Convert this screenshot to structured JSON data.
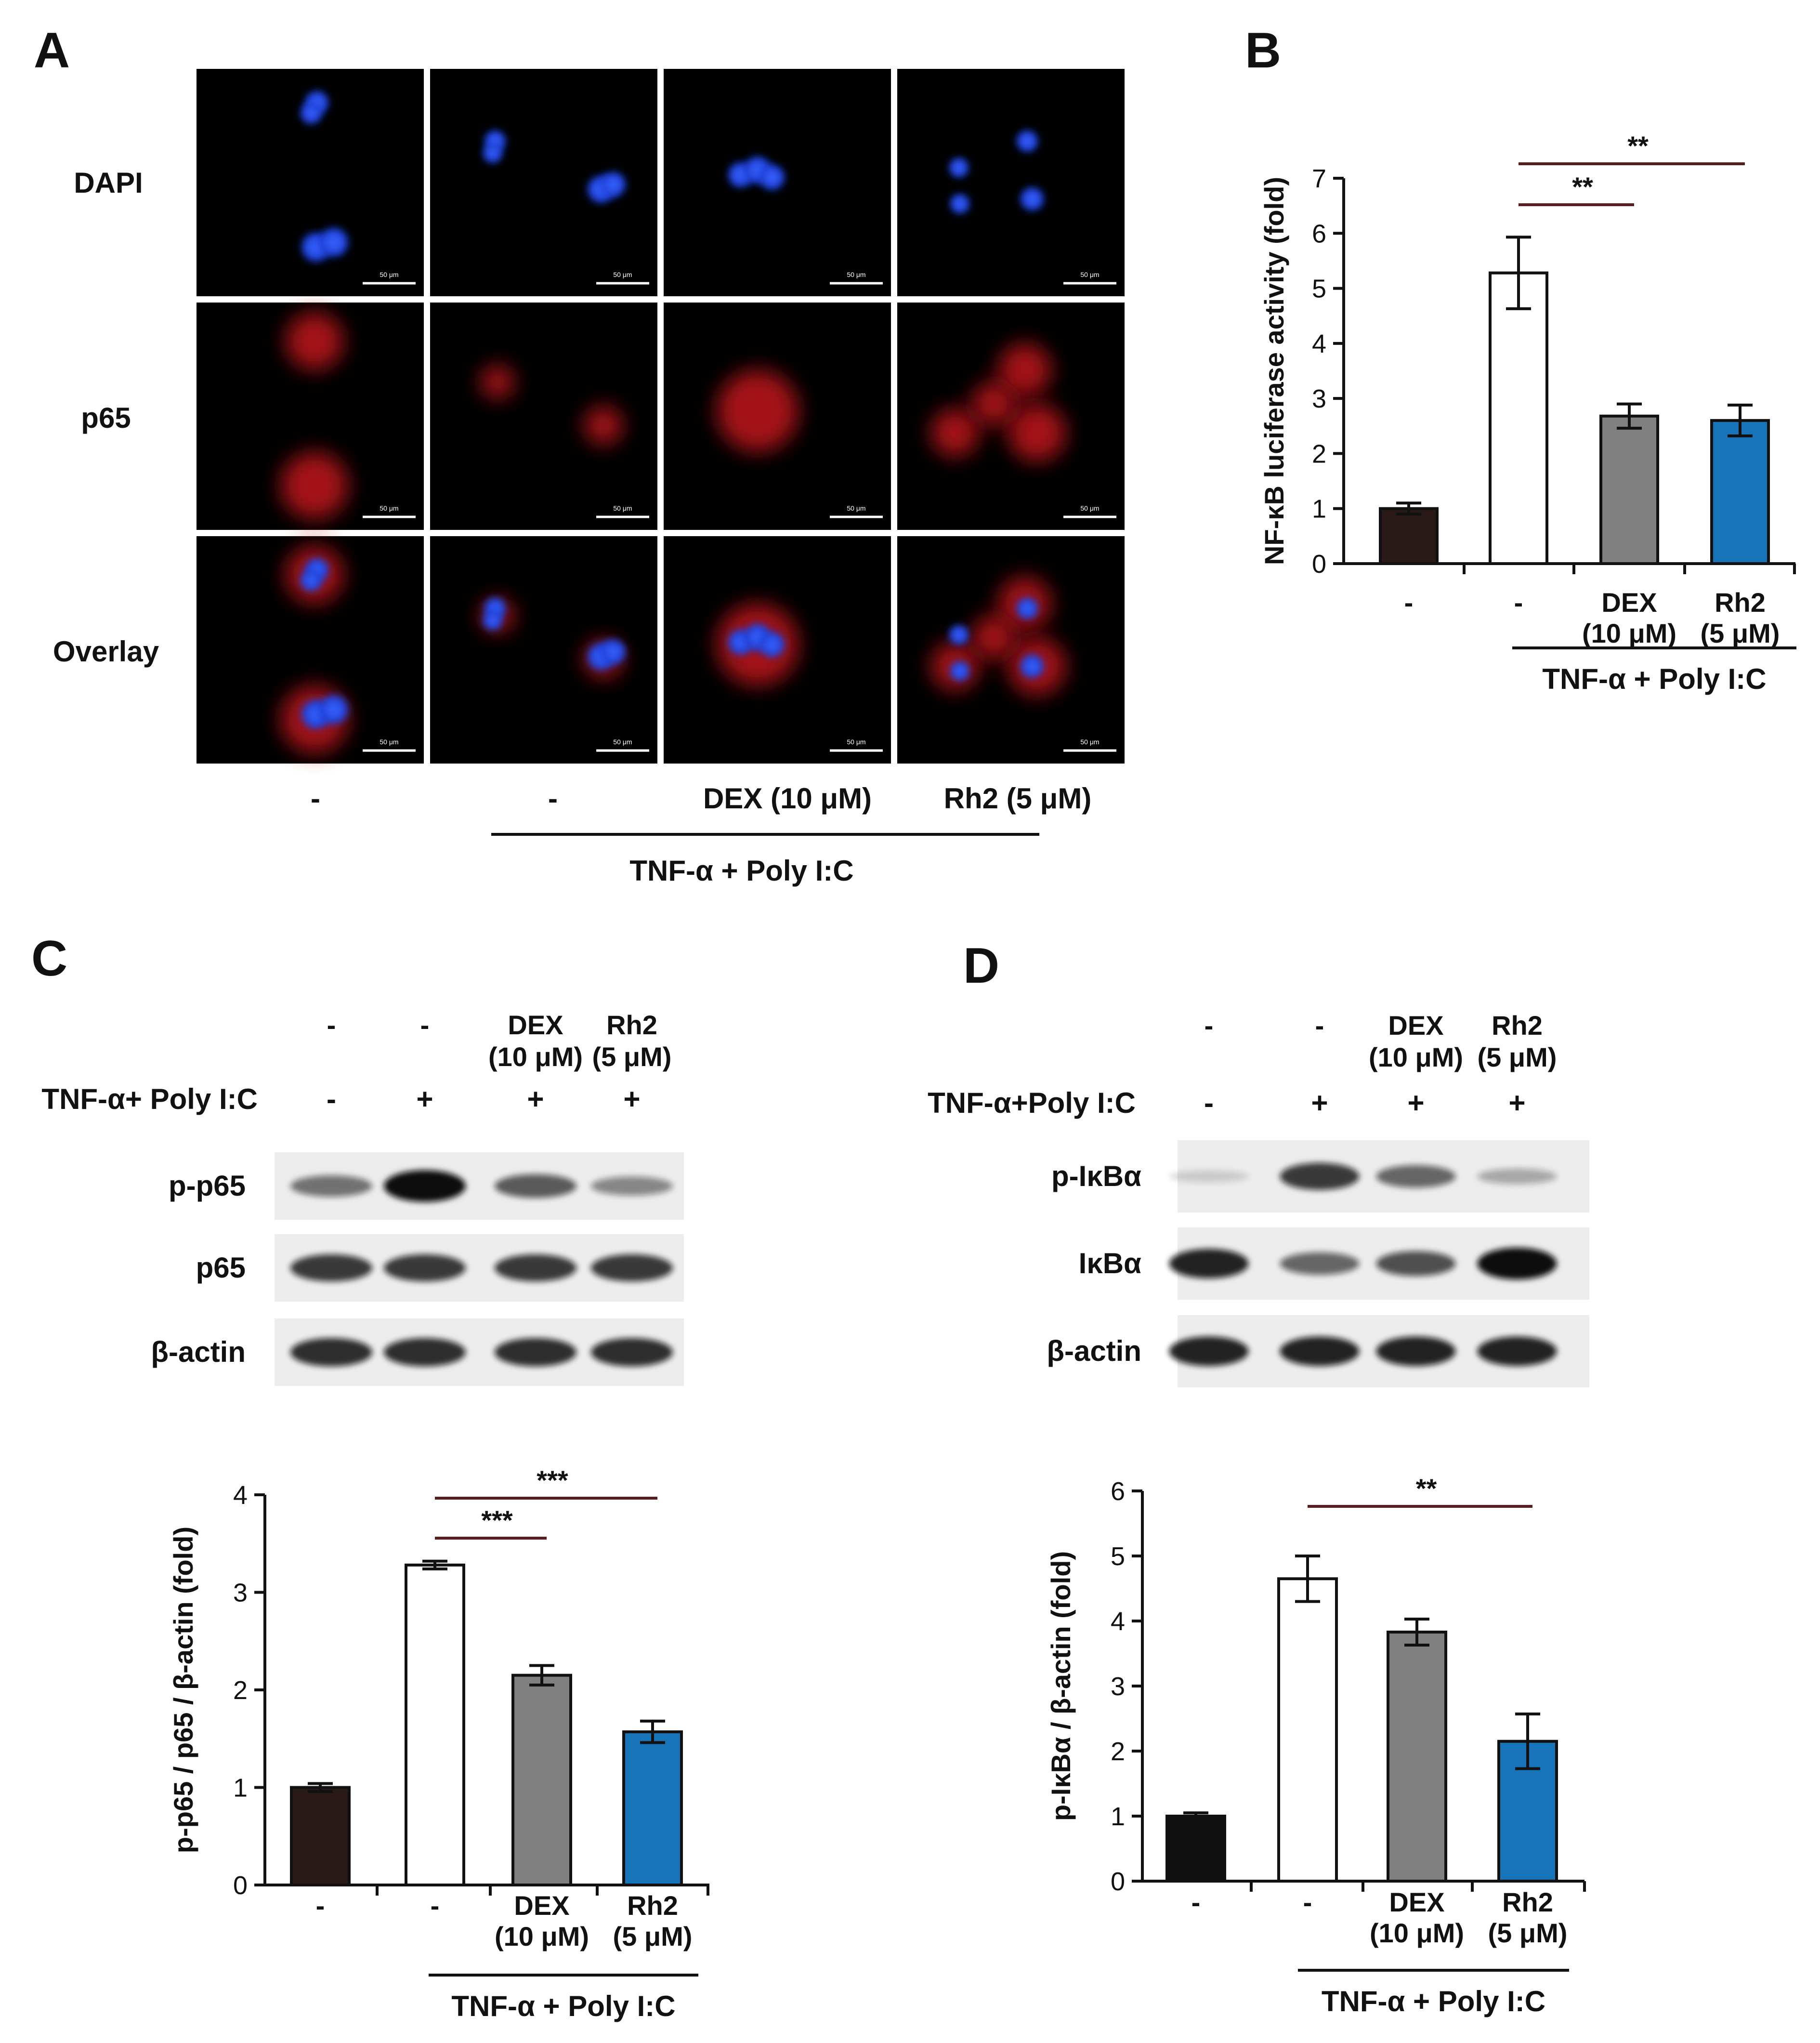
{
  "panels": {
    "A": {
      "letter": "A",
      "row_labels": [
        "DAPI",
        "p65",
        "Overlay"
      ],
      "scale_bar_label": "50 μm",
      "columns": [
        "-",
        "-",
        "DEX (10 μM)",
        "Rh2 (5 μM)"
      ],
      "group_label": "TNF-α + Poly I:C"
    },
    "B": {
      "letter": "B",
      "groups": [
        "-",
        "-",
        "DEX\n(10 μM)",
        "Rh2\n(5 μM)"
      ],
      "group_label": "TNF-α + Poly I:C"
    },
    "C": {
      "letter": "C",
      "header_top": [
        "-",
        "-",
        "DEX\n(10 μM)",
        "Rh2\n(5 μM)"
      ],
      "treatment_label": "TNF-α+ Poly I:C",
      "treatment_signs": [
        "-",
        "+",
        "+",
        "+"
      ],
      "blot_rows": [
        "p-p65",
        "p65",
        "β-actin"
      ],
      "blot_intensity": {
        "p-p65": [
          0.55,
          1.0,
          0.65,
          0.45
        ],
        "p65": [
          0.8,
          0.8,
          0.8,
          0.8
        ],
        "β-actin": [
          0.85,
          0.85,
          0.85,
          0.85
        ]
      },
      "groups": [
        "-",
        "-",
        "DEX\n(10 μM)",
        "Rh2\n(5 μM)"
      ],
      "group_label": "TNF-α + Poly I:C"
    },
    "D": {
      "letter": "D",
      "header_top": [
        "-",
        "-",
        "DEX\n(10 μM)",
        "Rh2\n(5 μM)"
      ],
      "treatment_label": "TNF-α+Poly I:C",
      "treatment_signs": [
        "-",
        "+",
        "+",
        "+"
      ],
      "blot_rows": [
        "p-IκBα",
        "IκBα",
        "β-actin"
      ],
      "blot_intensity": {
        "p-IκBα": [
          0.15,
          0.8,
          0.6,
          0.3
        ],
        "IκBα": [
          0.9,
          0.6,
          0.7,
          1.0
        ],
        "β-actin": [
          0.9,
          0.9,
          0.9,
          0.9
        ]
      },
      "groups": [
        "-",
        "-",
        "DEX\n(10 μM)",
        "Rh2\n(5 μM)"
      ],
      "group_label": "TNF-α + Poly I:C"
    }
  },
  "chart_data": [
    {
      "panel": "B",
      "type": "bar",
      "ylabel": "NF-κB luciferase activity (fold)",
      "ylim": [
        0,
        7
      ],
      "yticks": [
        0,
        1,
        2,
        3,
        4,
        5,
        6,
        7
      ],
      "categories": [
        "-",
        "-",
        "DEX (10 μM)",
        "Rh2 (5 μM)"
      ],
      "values": [
        1.0,
        5.28,
        2.68,
        2.6
      ],
      "errors": [
        0.1,
        0.65,
        0.22,
        0.28
      ],
      "bar_colors": [
        "#2a1a17",
        "#ffffff",
        "#808080",
        "#1874b8"
      ],
      "significance": [
        {
          "from": 1,
          "to": 2,
          "label": "**"
        },
        {
          "from": 1,
          "to": 3,
          "label": "**"
        }
      ]
    },
    {
      "panel": "C",
      "type": "bar",
      "ylabel": "p-p65 / p65 / β-actin (fold)",
      "ylim": [
        0,
        4
      ],
      "yticks": [
        0,
        1,
        2,
        3,
        4
      ],
      "categories": [
        "-",
        "-",
        "DEX (10 μM)",
        "Rh2 (5 μM)"
      ],
      "values": [
        1.0,
        3.28,
        2.15,
        1.57
      ],
      "errors": [
        0.04,
        0.04,
        0.1,
        0.11
      ],
      "bar_colors": [
        "#2a1a17",
        "#ffffff",
        "#808080",
        "#1874b8"
      ],
      "significance": [
        {
          "from": 1,
          "to": 2,
          "label": "***"
        },
        {
          "from": 1,
          "to": 3,
          "label": "***"
        }
      ]
    },
    {
      "panel": "D",
      "type": "bar",
      "ylabel": "p-IκBα / β-actin (fold)",
      "ylim": [
        0,
        6
      ],
      "yticks": [
        0,
        1,
        2,
        3,
        4,
        5,
        6
      ],
      "categories": [
        "-",
        "-",
        "DEX (10 μM)",
        "Rh2 (5 μM)"
      ],
      "values": [
        1.0,
        4.65,
        3.83,
        2.15
      ],
      "errors": [
        0.05,
        0.35,
        0.2,
        0.42
      ],
      "bar_colors": [
        "#111111",
        "#ffffff",
        "#808080",
        "#1874b8"
      ],
      "significance": [
        {
          "from": 1,
          "to": 3,
          "label": "**"
        }
      ]
    }
  ]
}
